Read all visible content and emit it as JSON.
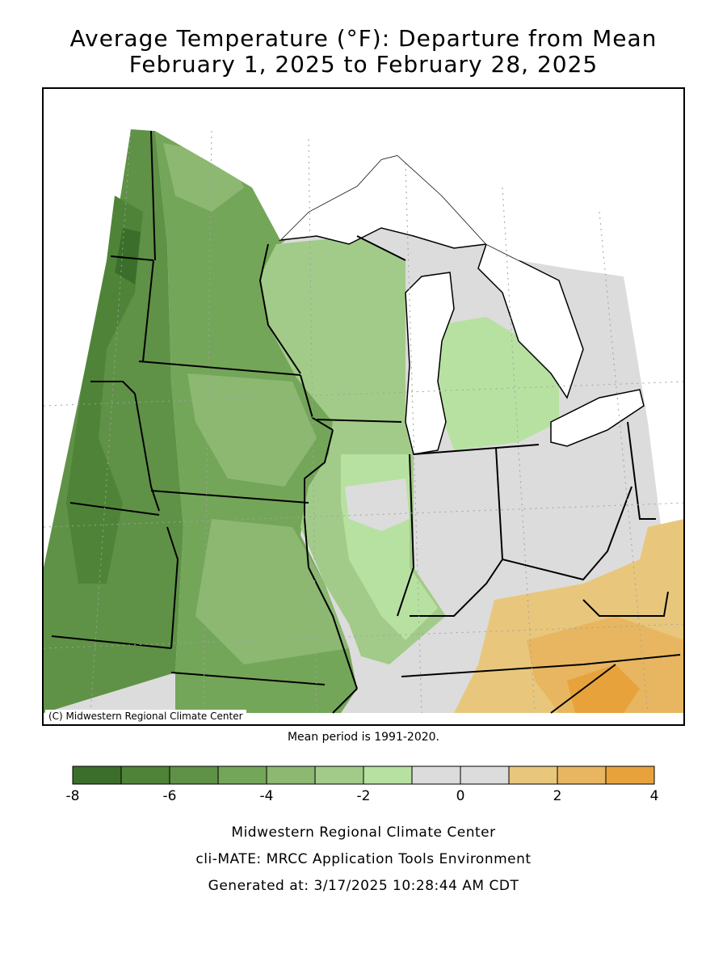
{
  "title": {
    "line1": "Average Temperature (°F): Departure from Mean",
    "line2": "February 1, 2025 to February 28, 2025"
  },
  "map": {
    "copyright": "(C) Midwestern Regional Climate Center",
    "mean_period": "Mean period is 1991-2020.",
    "colors": {
      "lake": "#ffffff",
      "border": "#000000",
      "grid": "#a0a0a0"
    }
  },
  "legend": {
    "bins": [
      {
        "from": -8,
        "to": -7,
        "color": "#3a6e2a"
      },
      {
        "from": -7,
        "to": -6,
        "color": "#4f8438"
      },
      {
        "from": -6,
        "to": -5,
        "color": "#5f9247"
      },
      {
        "from": -5,
        "to": -4,
        "color": "#74a659"
      },
      {
        "from": -4,
        "to": -3,
        "color": "#8cb872"
      },
      {
        "from": -3,
        "to": -2,
        "color": "#a2cb89"
      },
      {
        "from": -2,
        "to": -1,
        "color": "#b7e1a1"
      },
      {
        "from": -1,
        "to": 0,
        "color": "#dcdcdc"
      },
      {
        "from": 0,
        "to": 1,
        "color": "#dcdcdc"
      },
      {
        "from": 1,
        "to": 2,
        "color": "#e8c77c"
      },
      {
        "from": 2,
        "to": 3,
        "color": "#e8b660"
      },
      {
        "from": 3,
        "to": 4,
        "color": "#e8a23c"
      }
    ],
    "tick_labels": [
      "-8",
      "-6",
      "-4",
      "-2",
      "0",
      "2",
      "4"
    ]
  },
  "footer": {
    "line1": "Midwestern Regional Climate Center",
    "line2": "cli-MATE: MRCC Application Tools Environment",
    "line3": "Generated at: 3/17/2025 10:28:44 AM CDT"
  }
}
